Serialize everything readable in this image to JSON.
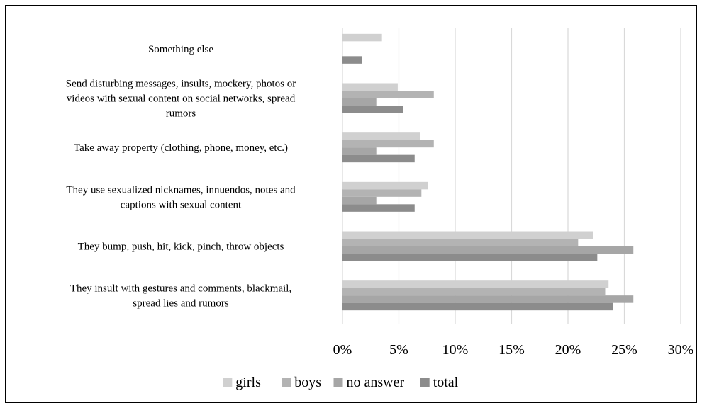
{
  "chart_data": {
    "type": "bar",
    "orientation": "horizontal",
    "categories": [
      [
        "They insult with gestures and comments, blackmail,",
        "spread lies and rumors"
      ],
      [
        "They bump, push, hit, kick, pinch, throw objects"
      ],
      [
        "They use sexualized nicknames, innuendos, notes and",
        "captions with sexual content"
      ],
      [
        "Take away property (clothing, phone, money, etc.)"
      ],
      [
        "Send disturbing messages, insults, mockery, photos or",
        "videos with sexual content on social networks, spread",
        "rumors"
      ],
      [
        "Something else"
      ]
    ],
    "series": [
      {
        "name": "girls",
        "color": "#d0d0d0",
        "values": [
          23.6,
          22.2,
          7.6,
          6.9,
          4.9,
          3.5
        ]
      },
      {
        "name": "boys",
        "color": "#b3b3b3",
        "values": [
          23.3,
          20.9,
          7.0,
          8.1,
          8.1,
          0
        ]
      },
      {
        "name": "no answer",
        "color": "#a6a6a6",
        "values": [
          25.8,
          25.8,
          3.0,
          3.0,
          3.0,
          0
        ]
      },
      {
        "name": "total",
        "color": "#8c8c8c",
        "values": [
          24.0,
          22.6,
          6.4,
          6.4,
          5.4,
          1.7
        ]
      }
    ],
    "xlim": [
      0,
      30
    ],
    "xticks": [
      "0%",
      "5%",
      "10%",
      "15%",
      "20%",
      "25%",
      "30%"
    ],
    "grid": true,
    "legend": "bottom"
  }
}
